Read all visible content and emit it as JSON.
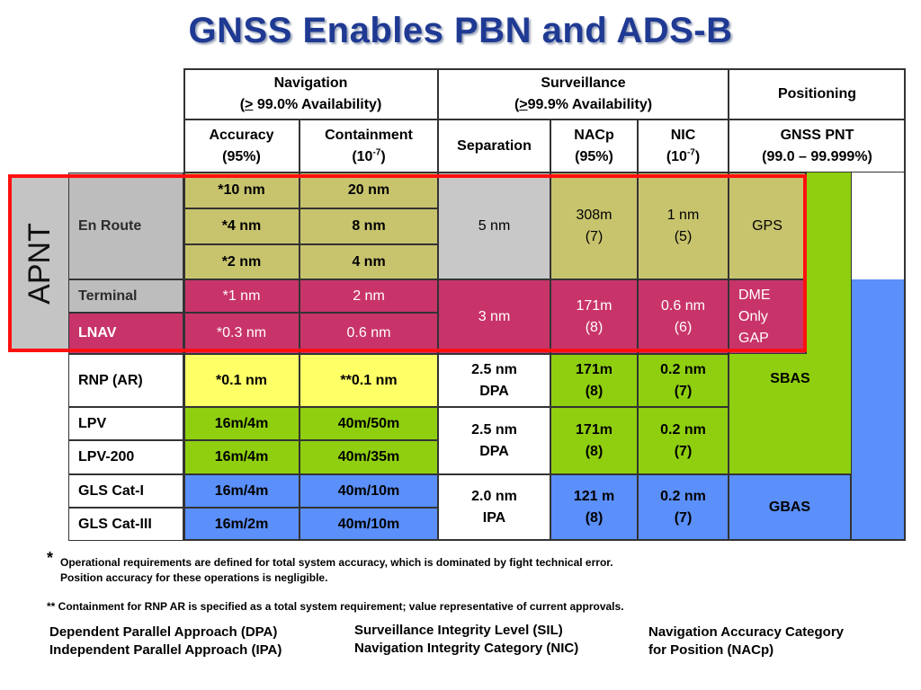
{
  "title": "GNSS Enables PBN and ADS-B",
  "apnt_label": "APNT",
  "headers": {
    "navigation_line1": "Navigation",
    "navigation_ge": ">",
    "navigation_line2": " 99.0% Availability)",
    "surveillance_line1": "Surveillance",
    "surveillance_ge": ">",
    "surveillance_line2": "99.9% Availability)",
    "positioning": "Positioning",
    "accuracy_line1": "Accuracy",
    "accuracy_line2": "(95%)",
    "containment_line1": "Containment",
    "containment_base": "(10",
    "containment_exp": "-7",
    "separation": "Separation",
    "nacp_line1": "NACp",
    "nacp_line2": "(95%)",
    "nic_line1": "NIC",
    "nic_base": "(10",
    "nic_exp": "-7",
    "gnss_pnt_line1": "GNSS PNT",
    "gnss_pnt_line2": "(99.0 – 99.999%)"
  },
  "rows": {
    "en_route": "En Route",
    "terminal": "Terminal",
    "lnav": "LNAV",
    "rnp_ar": "RNP (AR)",
    "lpv": "LPV",
    "lpv200": "LPV-200",
    "gls_cat1": "GLS Cat-I",
    "gls_cat3": "GLS Cat-III"
  },
  "cells": {
    "er1_acc": "*10 nm",
    "er1_cont": "20 nm",
    "er2_acc": "*4 nm",
    "er2_cont": "8 nm",
    "er3_acc": "*2 nm",
    "er3_cont": "4 nm",
    "er_sep": "5 nm",
    "er_nacp_1": "308m",
    "er_nacp_2": "(7)",
    "er_nic_1": "1 nm",
    "er_nic_2": "(5)",
    "er_pos": "GPS",
    "term_acc": "*1 nm",
    "term_cont": "2 nm",
    "lnav_acc": "*0.3 nm",
    "lnav_cont": "0.6 nm",
    "tl_sep": "3 nm",
    "tl_nacp_1": "171m",
    "tl_nacp_2": "(8)",
    "tl_nic_1": "0.6 nm",
    "tl_nic_2": "(6)",
    "tl_pos_1": "DME",
    "tl_pos_2": "Only",
    "tl_pos_3": "GAP",
    "rnp_acc": "*0.1 nm",
    "rnp_cont": "**0.1 nm",
    "rnp_sep_1": "2.5 nm",
    "rnp_sep_2": "DPA",
    "rnp_nacp_1": "171m",
    "rnp_nacp_2": "(8)",
    "rnp_nic_1": "0.2 nm",
    "rnp_nic_2": "(7)",
    "rnp_pos": "SBAS",
    "lpv_acc": "16m/4m",
    "lpv_cont": "40m/50m",
    "lpv200_acc": "16m/4m",
    "lpv200_cont": "40m/35m",
    "lpv_sep_1": "2.5 nm",
    "lpv_sep_2": "DPA",
    "lpv_nacp_1": "171m",
    "lpv_nacp_2": "(8)",
    "lpv_nic_1": "0.2 nm",
    "lpv_nic_2": "(7)",
    "gls1_acc": "16m/4m",
    "gls1_cont": "40m/10m",
    "gls3_acc": "16m/2m",
    "gls3_cont": "40m/10m",
    "gls_sep_1": "2.0 nm",
    "gls_sep_2": "IPA",
    "gls_nacp_1": "121 m",
    "gls_nacp_2": "(8)",
    "gls_nic_1": "0.2 nm",
    "gls_nic_2": "(7)",
    "gls_pos": "GBAS"
  },
  "notes": {
    "star": "*",
    "note1_line1": "Operational requirements are defined for total system accuracy, which is dominated by fight technical error.",
    "note1_line2": "Position accuracy for these operations is negligible.",
    "note2": "** Containment for RNP AR is specified as a total system requirement; value representative of current approvals."
  },
  "abbreviations": {
    "dpa": "Dependent Parallel Approach (DPA)",
    "ipa": "Independent Parallel Approach (IPA)",
    "sil": "Surveillance Integrity Level (SIL)",
    "nic": "Navigation Integrity Category (NIC)",
    "nacp_1": "Navigation Accuracy Category",
    "nacp_2": "for Position (NACp)"
  },
  "colors": {
    "title": "#1f3a93",
    "olive": "#c8c46e",
    "pink": "#c8346a",
    "yellow": "#ffff66",
    "green": "#8fcf10",
    "blue": "#5b8ff9",
    "gray": "#c8c8c8",
    "apnt_border": "#ff1010"
  }
}
